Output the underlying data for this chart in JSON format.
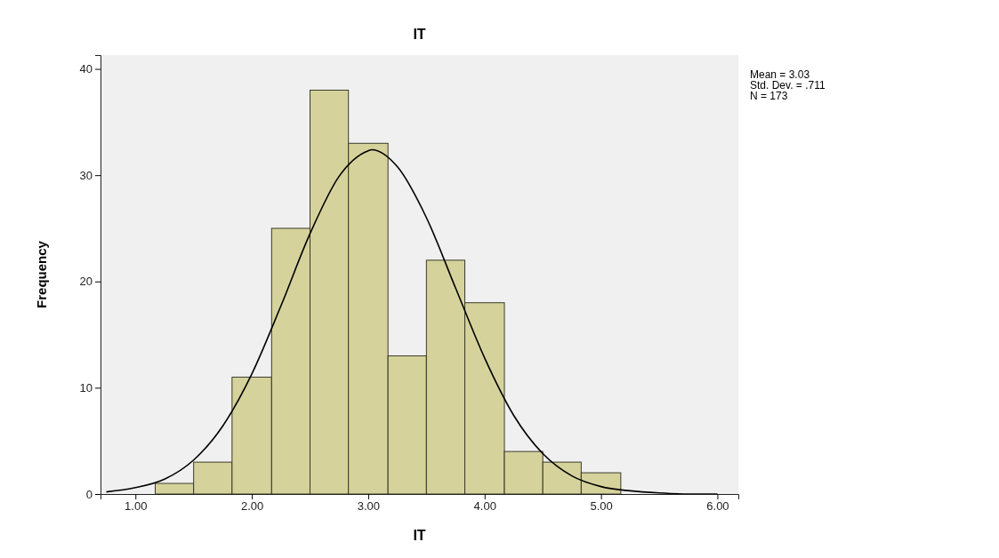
{
  "chart_data": {
    "type": "histogram",
    "title": "IT",
    "xlabel": "IT",
    "ylabel": "Frequency",
    "bins": [
      1.17,
      1.5,
      1.83,
      2.17,
      2.5,
      2.83,
      3.17,
      3.5,
      3.83,
      4.17,
      4.5,
      4.83,
      5.17
    ],
    "values": [
      1,
      3,
      11,
      25,
      38,
      33,
      13,
      22,
      18,
      4,
      3,
      2
    ],
    "color": "#d5d39b",
    "series": [
      {
        "type": "line",
        "color": "#000000",
        "x": [
          0.75,
          1.0,
          1.25,
          1.5,
          1.75,
          2.0,
          2.25,
          2.5,
          2.75,
          3.0,
          3.03,
          3.25,
          3.5,
          3.75,
          4.0,
          4.25,
          4.5,
          4.75,
          5.0,
          5.25,
          5.5,
          5.75,
          6.0
        ],
        "values": [
          0.2,
          0.6,
          1.4,
          3.2,
          6.4,
          11.3,
          17.7,
          24.5,
          29.9,
          32.3,
          32.4,
          30.8,
          26.0,
          19.4,
          12.8,
          7.4,
          3.8,
          1.7,
          0.7,
          0.3,
          0.1,
          0,
          0
        ]
      }
    ],
    "xlim": [
      0.7,
      6.18
    ],
    "ylim": [
      0,
      41.3
    ],
    "xticks": [
      {
        "value": 1,
        "label": "1.00"
      },
      {
        "value": 2,
        "label": "2.00"
      },
      {
        "value": 3,
        "label": "3.00"
      },
      {
        "value": 4,
        "label": "4.00"
      },
      {
        "value": 5,
        "label": "5.00"
      },
      {
        "value": 6,
        "label": "6.00"
      }
    ],
    "yticks": [
      0,
      10,
      20,
      30,
      40
    ],
    "annotations": [
      "Mean = 3.03",
      "Std. Dev. = .711",
      "N = 173"
    ]
  }
}
